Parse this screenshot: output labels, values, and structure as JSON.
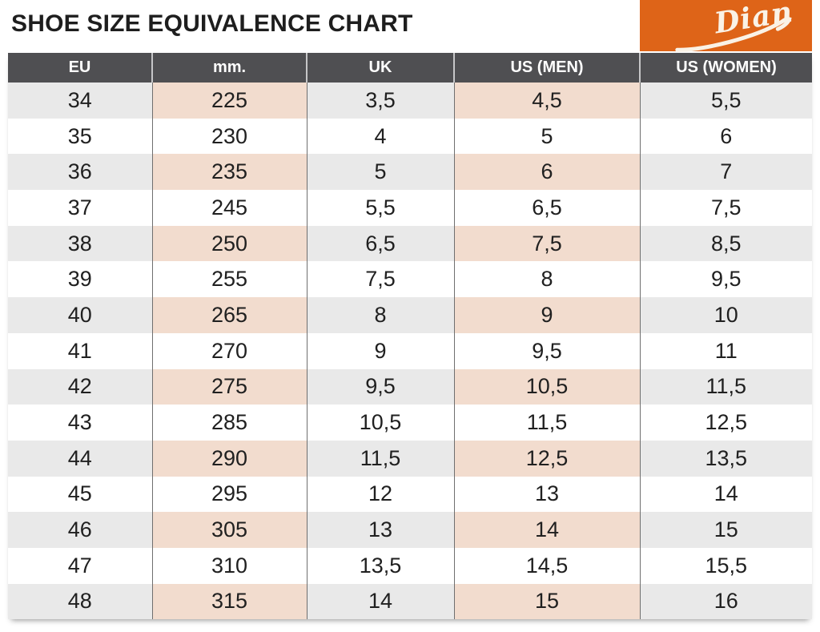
{
  "page": {
    "title": "SHOE SIZE EQUIVALENCE CHART"
  },
  "brand": {
    "name": "Dian"
  },
  "colors": {
    "brand_orange": "#DE6418",
    "brand_text": "#FAF2E6",
    "header_bg": "#4F4F52",
    "header_text": "#FFFFFF",
    "row_shade_gray": "#E9E9E9",
    "row_shade_peach": "#F2DCCE",
    "cell_text": "#202020",
    "title_text": "#1E1E1E"
  },
  "chart_data": {
    "type": "table",
    "title": "SHOE SIZE EQUIVALENCE CHART",
    "columns": [
      "EU",
      "mm.",
      "UK",
      "US (MEN)",
      "US (WOMEN)"
    ],
    "decimal_separator": ",",
    "shading": "odd rows shaded; EU/UK/US(WOMEN) cells light gray, mm./US(MEN) cells light peach",
    "rows": [
      [
        "34",
        "225",
        "3,5",
        "4,5",
        "5,5"
      ],
      [
        "35",
        "230",
        "4",
        "5",
        "6"
      ],
      [
        "36",
        "235",
        "5",
        "6",
        "7"
      ],
      [
        "37",
        "245",
        "5,5",
        "6,5",
        "7,5"
      ],
      [
        "38",
        "250",
        "6,5",
        "7,5",
        "8,5"
      ],
      [
        "39",
        "255",
        "7,5",
        "8",
        "9,5"
      ],
      [
        "40",
        "265",
        "8",
        "9",
        "10"
      ],
      [
        "41",
        "270",
        "9",
        "9,5",
        "11"
      ],
      [
        "42",
        "275",
        "9,5",
        "10,5",
        "11,5"
      ],
      [
        "43",
        "285",
        "10,5",
        "11,5",
        "12,5"
      ],
      [
        "44",
        "290",
        "11,5",
        "12,5",
        "13,5"
      ],
      [
        "45",
        "295",
        "12",
        "13",
        "14"
      ],
      [
        "46",
        "305",
        "13",
        "14",
        "15"
      ],
      [
        "47",
        "310",
        "13,5",
        "14,5",
        "15,5"
      ],
      [
        "48",
        "315",
        "14",
        "15",
        "16"
      ]
    ]
  }
}
